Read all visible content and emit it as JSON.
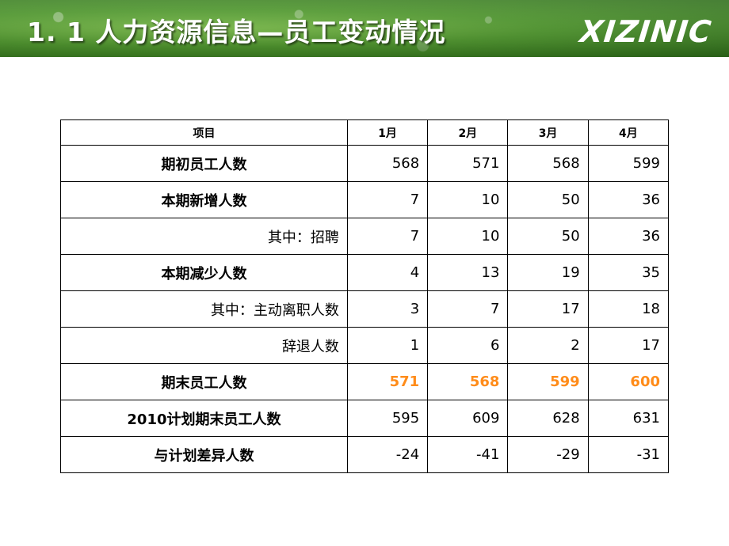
{
  "header": {
    "title": "1. 1 人力资源信息—员工变动情况",
    "logo_text": "XIZINIC"
  },
  "colors": {
    "banner": "#4f9a2c",
    "highlight": "#ff8c1a"
  },
  "table": {
    "columns": [
      "项目",
      "1月",
      "2月",
      "3月",
      "4月"
    ],
    "rows": [
      {
        "label": "期初员工人数",
        "values": [
          "568",
          "571",
          "568",
          "599"
        ]
      },
      {
        "label": "本期新增人数",
        "values": [
          "7",
          "10",
          "50",
          "36"
        ]
      },
      {
        "label": "其中：招聘",
        "values": [
          "7",
          "10",
          "50",
          "36"
        ]
      },
      {
        "label": "本期减少人数",
        "values": [
          "4",
          "13",
          "19",
          "35"
        ]
      },
      {
        "label": "其中：主动离职人数",
        "values": [
          "3",
          "7",
          "17",
          "18"
        ]
      },
      {
        "label": "辞退人数",
        "values": [
          "1",
          "6",
          "2",
          "17"
        ]
      },
      {
        "label": "期末员工人数",
        "values": [
          "571",
          "568",
          "599",
          "600"
        ]
      },
      {
        "label": "2010计划期末员工人数",
        "values": [
          "595",
          "609",
          "628",
          "631"
        ]
      },
      {
        "label": "与计划差异人数",
        "values": [
          "-24",
          "-41",
          "-29",
          "-31"
        ]
      }
    ]
  }
}
